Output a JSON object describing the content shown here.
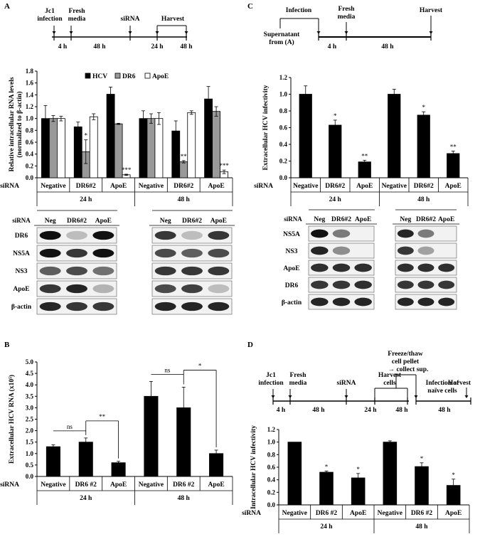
{
  "panel_A": {
    "label": "A",
    "timeline": {
      "events": [
        "Jc1 infection",
        "Fresh media",
        "siRNA",
        "Harvest"
      ],
      "durations": [
        "4 h",
        "48 h",
        "24 h",
        "48 h"
      ]
    },
    "chart_legend": [
      "HCV",
      "DR6",
      "ApoE"
    ],
    "blot": {
      "header_label": "siRNA",
      "lanes": [
        "Neg",
        "DR6#2",
        "ApoE"
      ],
      "rows": [
        "DR6",
        "NS5A",
        "NS3",
        "ApoE",
        "β-actin"
      ]
    }
  },
  "panel_B": {
    "label": "B"
  },
  "panel_C": {
    "label": "C",
    "timeline": {
      "events": [
        "Infection",
        "Fresh media",
        "Harvest"
      ],
      "source": "Supernatant from (A)",
      "durations": [
        "4 h",
        "48 h"
      ]
    },
    "blot": {
      "header_label": "siRNA",
      "lanes": [
        "Neg",
        "DR6#2",
        "ApoE"
      ],
      "rows": [
        "NS5A",
        "NS3",
        "ApoE",
        "DR6",
        "β-actin"
      ]
    }
  },
  "panel_D": {
    "label": "D",
    "timeline": {
      "events": [
        "Jc1 infection",
        "Fresh media",
        "siRNA",
        "Harvest cells",
        "Infection of naïve cells",
        "Harvest"
      ],
      "note": "Freeze/thaw cell pellet → collect sup.",
      "durations": [
        "4 h",
        "48 h",
        "24 h",
        "48 h",
        "48 h"
      ]
    }
  },
  "chart_data": [
    {
      "id": "A",
      "type": "bar",
      "title": "",
      "ylabel": "Relative intracellular RNA levels (normalized to β-actin)",
      "xlabel": "siRNA",
      "ylim": [
        0,
        1.8
      ],
      "yticks": [
        "0.0",
        "0.2",
        "0.4",
        "0.6",
        "0.8",
        "1.0",
        "1.2",
        "1.4",
        "1.6",
        "1.8"
      ],
      "categories": [
        "Negative",
        "DR6#2",
        "ApoE",
        "Negative",
        "DR6#2",
        "ApoE"
      ],
      "groups": [
        "24 h",
        "48 h"
      ],
      "series": [
        {
          "name": "HCV",
          "color": "#000000",
          "values": [
            1.0,
            0.86,
            1.41,
            1.0,
            0.79,
            1.33
          ],
          "errors": [
            0.22,
            0.08,
            0.12,
            0.13,
            0.17,
            0.21
          ]
        },
        {
          "name": "DR6",
          "color": "#999999",
          "values": [
            1.0,
            0.44,
            0.91,
            1.0,
            0.27,
            1.12
          ],
          "errors": [
            0.05,
            0.2,
            0.01,
            0.08,
            0.02,
            0.08
          ]
        },
        {
          "name": "ApoE",
          "color": "#ffffff",
          "values": [
            1.0,
            1.03,
            0.05,
            1.0,
            1.1,
            0.1
          ],
          "errors": [
            0.04,
            0.05,
            0.01,
            0.1,
            0.03,
            0.03
          ]
        }
      ],
      "annotations": [
        {
          "series": "DR6",
          "index": 1,
          "text": "*"
        },
        {
          "series": "ApoE",
          "index": 2,
          "text": "***"
        },
        {
          "series": "DR6",
          "index": 4,
          "text": "**"
        },
        {
          "series": "ApoE",
          "index": 5,
          "text": "***"
        }
      ]
    },
    {
      "id": "B",
      "type": "bar",
      "title": "",
      "ylabel": "Extracellular HCV RNA (x10⁵)",
      "xlabel": "siRNA",
      "ylim": [
        0,
        5.0
      ],
      "yticks": [
        "0.0",
        "0.5",
        "1.0",
        "1.5",
        "2.0",
        "2.5",
        "3.0",
        "3.5",
        "4.0",
        "4.5",
        "5.0"
      ],
      "categories": [
        "Negative",
        "DR6 #2",
        "ApoE",
        "Negative",
        "DR6 #2",
        "ApoE"
      ],
      "groups": [
        "24 h",
        "48 h"
      ],
      "values": [
        1.3,
        1.5,
        0.6,
        3.5,
        3.0,
        1.0
      ],
      "errors": [
        0.08,
        0.18,
        0.06,
        0.65,
        0.9,
        0.15
      ],
      "comparisons": [
        {
          "from": 0,
          "to": 1,
          "text": "ns"
        },
        {
          "from": 1,
          "to": 2,
          "text": "**"
        },
        {
          "from": 3,
          "to": 4,
          "text": "ns"
        },
        {
          "from": 4,
          "to": 5,
          "text": "*"
        }
      ]
    },
    {
      "id": "C",
      "type": "bar",
      "title": "",
      "ylabel": "Extracellular HCV infectivity",
      "xlabel": "siRNA",
      "ylim": [
        0,
        1.2
      ],
      "yticks": [
        "0.0",
        "0.2",
        "0.4",
        "0.6",
        "0.8",
        "1.0",
        "1.2"
      ],
      "categories": [
        "Negative",
        "DR6#2",
        "ApoE",
        "Negative",
        "DR6#2",
        "ApoE"
      ],
      "groups": [
        "24 h",
        "48 h"
      ],
      "values": [
        1.0,
        0.63,
        0.19,
        1.0,
        0.75,
        0.29
      ],
      "errors": [
        0.1,
        0.06,
        0.02,
        0.06,
        0.04,
        0.03
      ],
      "annotations": [
        "",
        "*",
        "**",
        "",
        "*",
        "**"
      ]
    },
    {
      "id": "D",
      "type": "bar",
      "title": "",
      "ylabel": "Intracellular HCV infectivity",
      "xlabel": "siRNA",
      "ylim": [
        0,
        1.2
      ],
      "yticks": [
        "0.0",
        "0.2",
        "0.4",
        "0.6",
        "0.8",
        "1.0",
        "1.2"
      ],
      "categories": [
        "Negative",
        "DR6 #2",
        "ApoE",
        "Negative",
        "DR6 #2",
        "ApoE"
      ],
      "groups": [
        "24 h",
        "48 h"
      ],
      "values": [
        1.0,
        0.52,
        0.43,
        1.0,
        0.61,
        0.31
      ],
      "errors": [
        0.0,
        0.02,
        0.07,
        0.02,
        0.06,
        0.1
      ],
      "annotations": [
        "",
        "*",
        "*",
        "",
        "*",
        "*"
      ]
    }
  ]
}
